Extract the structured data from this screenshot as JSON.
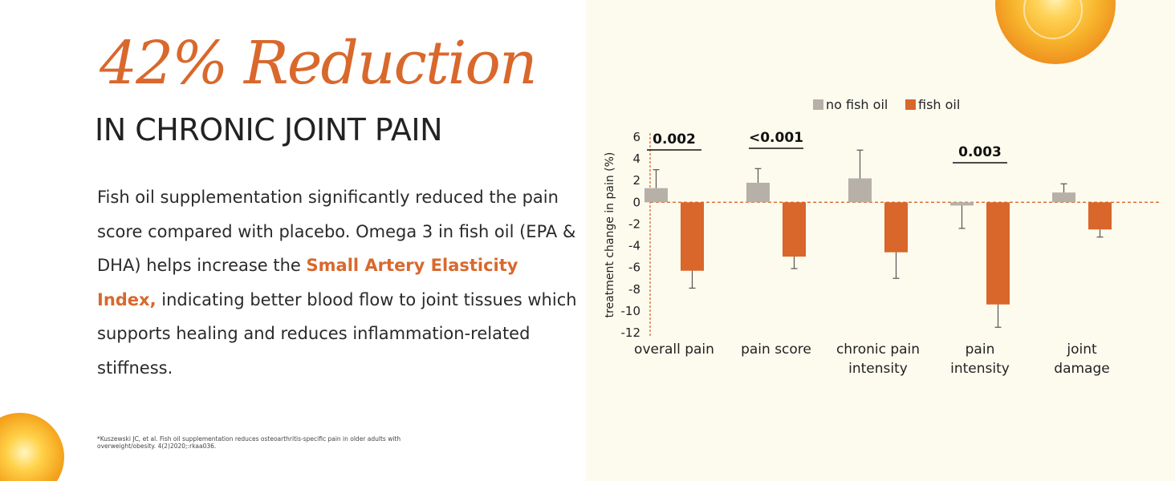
{
  "page": {
    "headline": "42% Reduction",
    "subheadline": "IN CHRONIC JOINT PAIN",
    "body_parts": [
      "Fish oil supplementation significantly reduced the pain score compared with placebo. Omega 3 in fish oil (EPA & DHA) helps increase the ",
      "Small Artery Elasticity Index,",
      " indicating better blood flow to joint tissues which supports healing and reduces inflammation-related stiffness."
    ],
    "footnote": "*Kuszewski JC, et al. Fish oil supplementation reduces osteoarthritis-specific pain in older adults with overweight/obesity. 4(2)2020;:rkaa036."
  },
  "colors": {
    "accent": "#d9682c",
    "no_fish_oil": "#b7b0a8",
    "fish_oil": "#d9662a",
    "background_right": "#fdfbee",
    "zero_line": "#d9682c"
  },
  "chart_data": {
    "type": "bar",
    "legend_position": "top",
    "ylabel": "treatment change in pain (%)",
    "ylim": [
      -12,
      6
    ],
    "yticks": [
      6,
      4,
      2,
      0,
      -2,
      -4,
      -6,
      -8,
      -10,
      -12
    ],
    "categories": [
      [
        "overall pain"
      ],
      [
        "pain score"
      ],
      [
        "chronic pain",
        "intensity"
      ],
      [
        "pain",
        "intensity"
      ],
      [
        "joint",
        "damage"
      ]
    ],
    "series": [
      {
        "name": "no fish oil",
        "values": [
          1.3,
          1.8,
          2.2,
          -0.3,
          0.9
        ],
        "error": [
          1.7,
          1.3,
          2.6,
          2.1,
          0.8
        ]
      },
      {
        "name": "fish oil",
        "values": [
          -6.3,
          -5.0,
          -4.6,
          -9.4,
          -2.5
        ],
        "error": [
          1.6,
          1.1,
          2.4,
          2.1,
          0.7
        ]
      }
    ],
    "p_values": [
      "0.002",
      "<0.001",
      "",
      "0.003",
      ""
    ]
  }
}
